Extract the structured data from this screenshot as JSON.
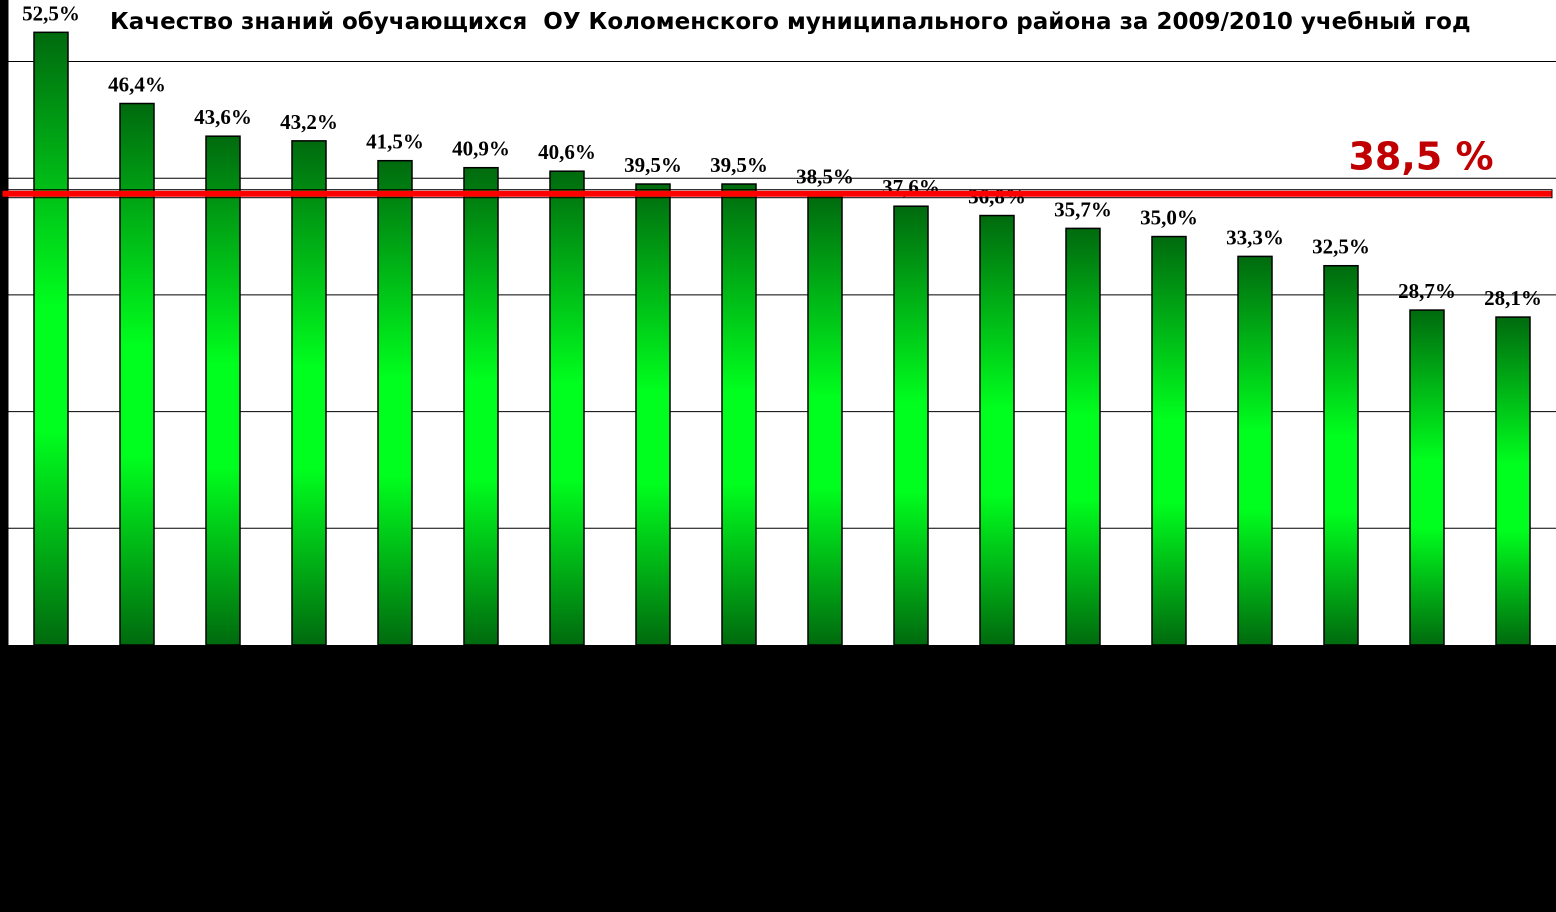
{
  "chart_data": {
    "type": "bar",
    "title": "Качество знаний обучающихся  ОУ Коломенского муниципального района за 2009/2010 учебный год",
    "xlabel": "",
    "ylabel": "",
    "ylim": [
      0,
      55
    ],
    "grid": true,
    "values": [
      52.5,
      46.4,
      43.6,
      43.2,
      41.5,
      40.9,
      40.6,
      39.5,
      39.5,
      38.5,
      37.6,
      36.8,
      35.7,
      35.0,
      33.3,
      32.5,
      28.7,
      28.1
    ],
    "data_labels": [
      "52,5%",
      "46,4%",
      "43,6%",
      "43,2%",
      "41,5%",
      "40,9%",
      "40,6%",
      "39,5%",
      "39,5%",
      "38,5%",
      "37,6%",
      "36,8%",
      "35,7%",
      "35,0%",
      "33,3%",
      "32,5%",
      "28,7%",
      "28,1%"
    ],
    "average": {
      "value": 38.5,
      "label": "38,5 %",
      "color": "#ff0000",
      "label_color": "#c00000"
    },
    "colors": {
      "bar_light": "#00ff1e",
      "bar_dark": "#006a0e",
      "background": "#ffffff",
      "grid": "#000000"
    }
  }
}
